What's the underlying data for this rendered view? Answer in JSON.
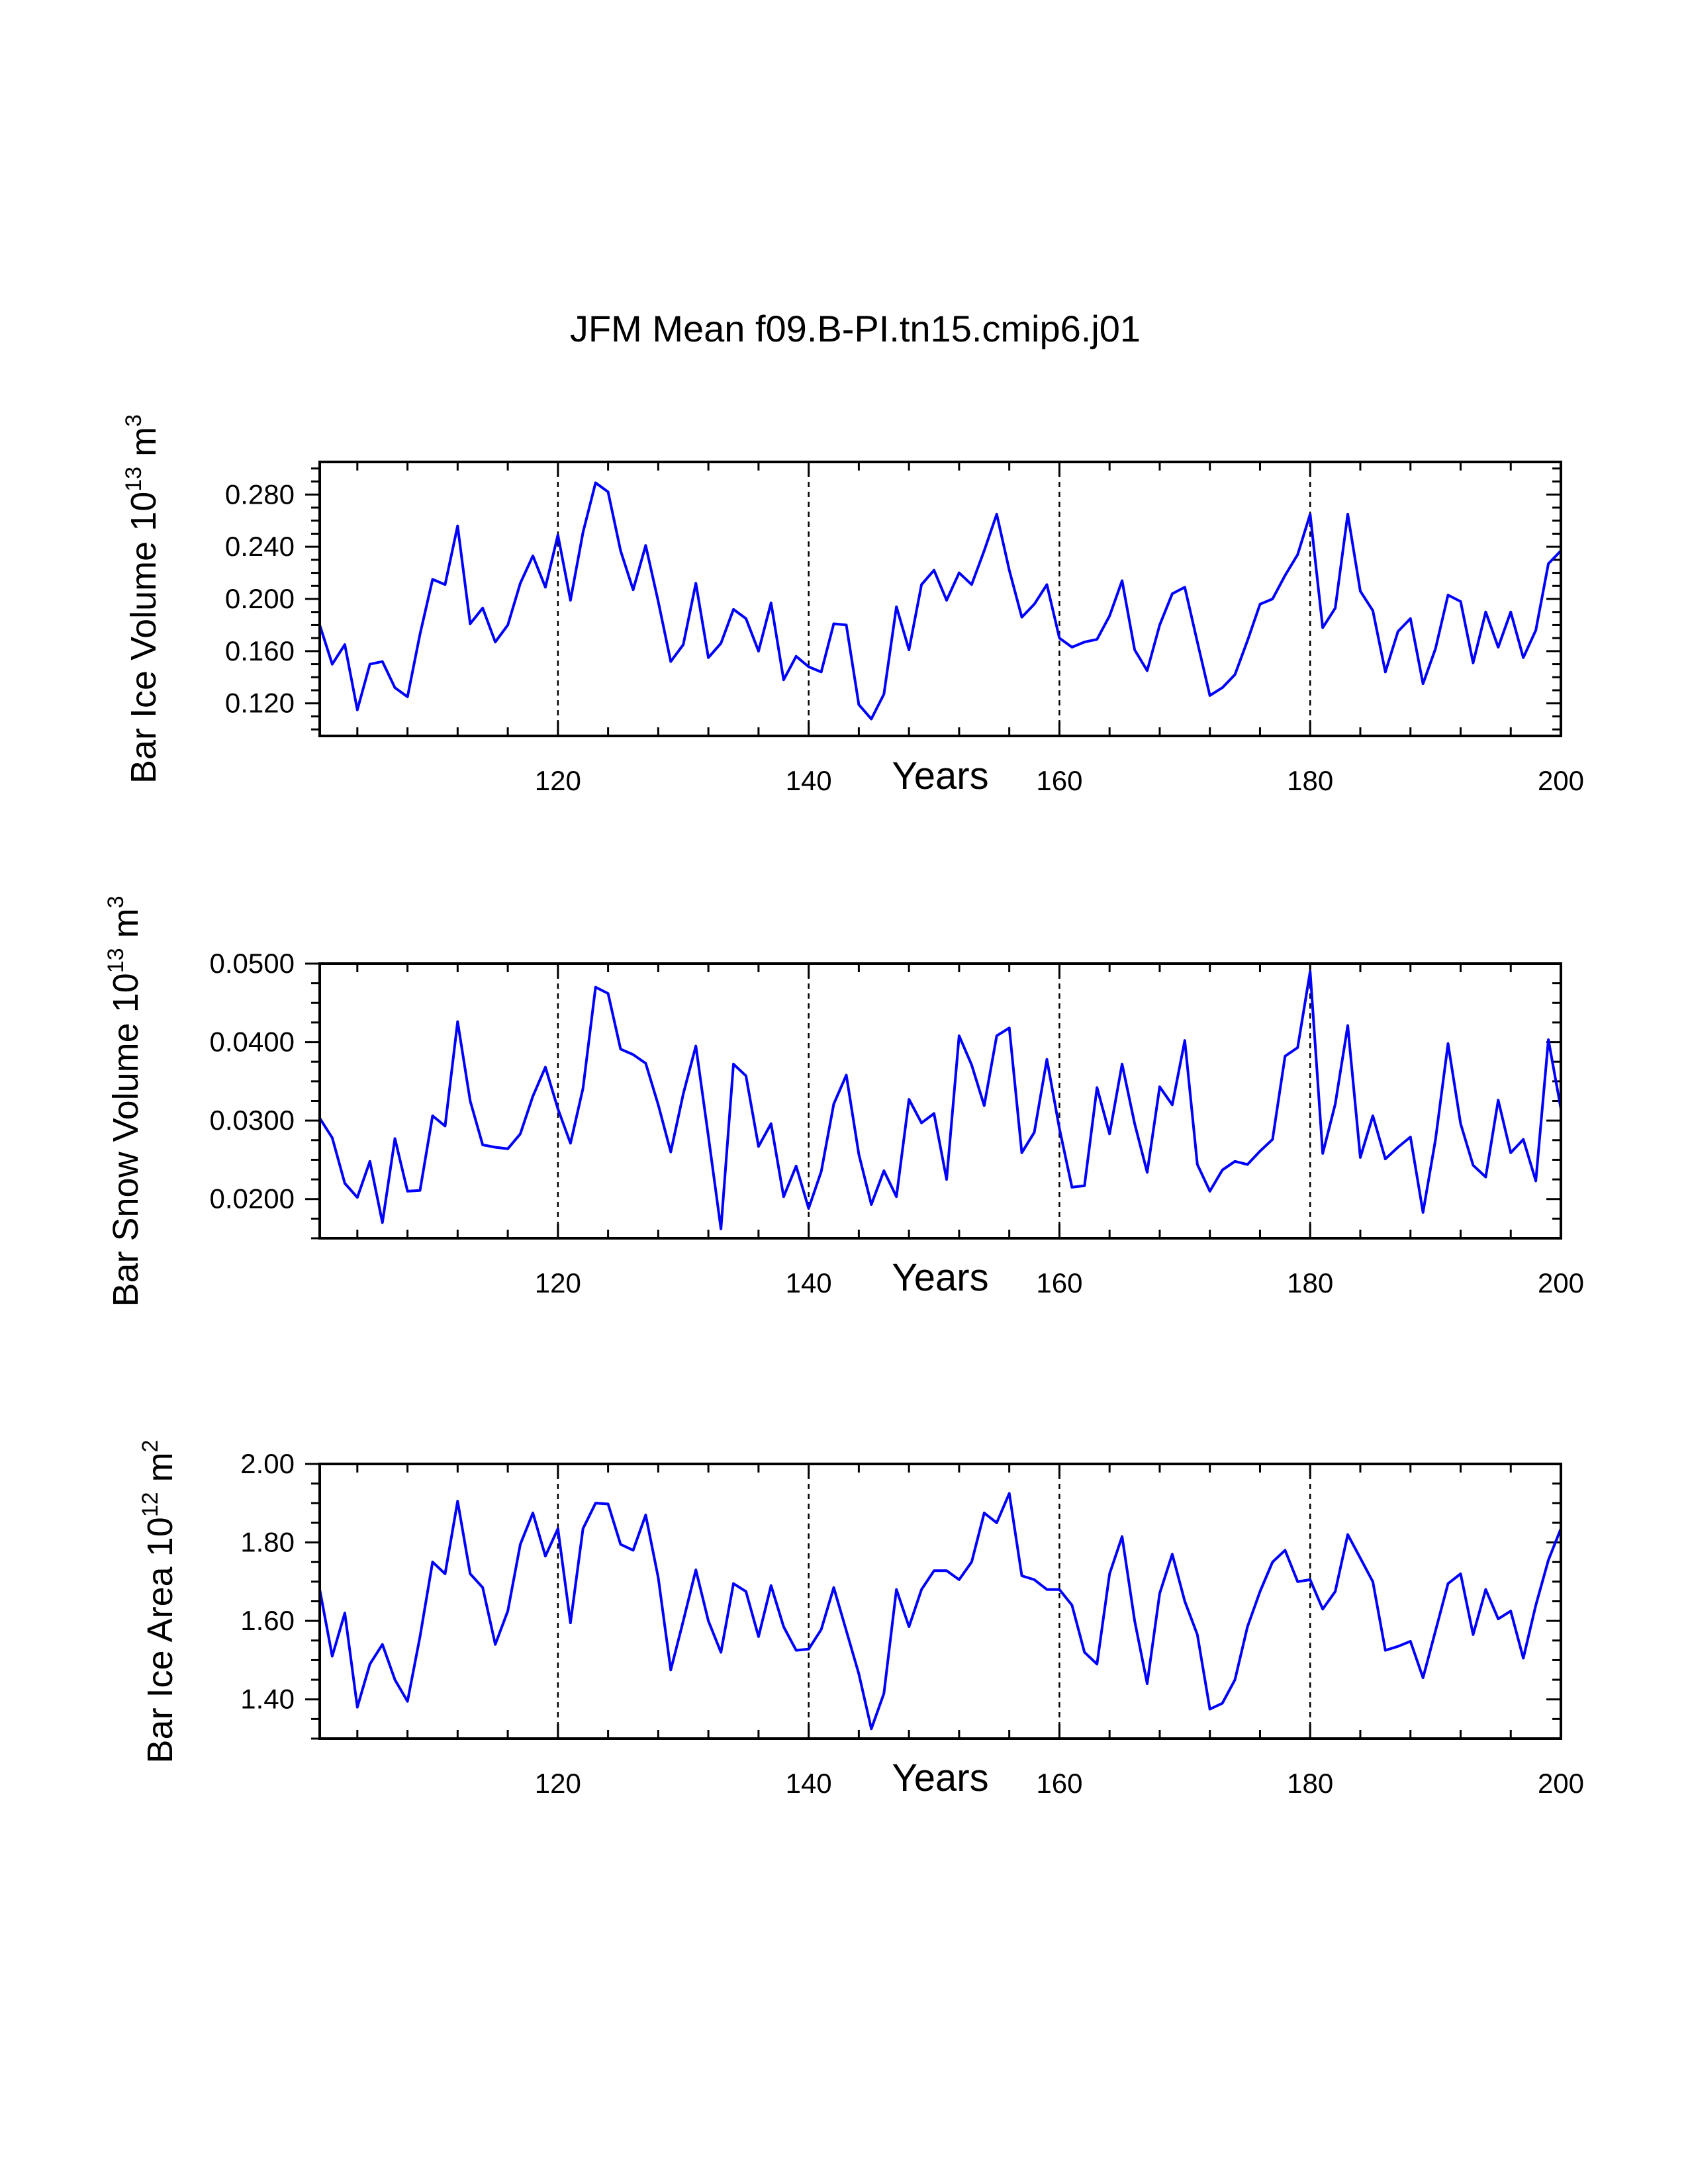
{
  "title": "JFM Mean f09.B-PI.tn15.cmip6.j01",
  "colors": {
    "line": "#0000ff",
    "axis": "#000000",
    "background": "#ffffff"
  },
  "chart_data": [
    {
      "type": "line",
      "ylabel_main": "Bar Ice Volume 10",
      "ylabel_exp": "13",
      "ylabel_unit": " m",
      "ylabel_unit_exp": "3",
      "xlabel": "Years",
      "xlim": [
        101,
        200
      ],
      "ylim": [
        0.095,
        0.305
      ],
      "xticks": [
        120,
        140,
        160,
        180,
        200
      ],
      "xtick_labels": [
        "120",
        "140",
        "160",
        "180",
        "200"
      ],
      "yticks": [
        0.12,
        0.16,
        0.2,
        0.24,
        0.28
      ],
      "ytick_labels": [
        "0.120",
        "0.160",
        "0.200",
        "0.240",
        "0.280"
      ],
      "grid_x": [
        120,
        140,
        160,
        180
      ],
      "series": [
        {
          "name": "Bar Ice Volume",
          "x_start": 101,
          "values": [
            0.18,
            0.15,
            0.165,
            0.115,
            0.15,
            0.152,
            0.132,
            0.125,
            0.173,
            0.215,
            0.211,
            0.256,
            0.181,
            0.193,
            0.167,
            0.18,
            0.212,
            0.233,
            0.209,
            0.249,
            0.199,
            0.251,
            0.289,
            0.282,
            0.237,
            0.207,
            0.241,
            0.198,
            0.152,
            0.165,
            0.212,
            0.155,
            0.166,
            0.192,
            0.185,
            0.16,
            0.197,
            0.138,
            0.156,
            0.148,
            0.144,
            0.181,
            0.18,
            0.119,
            0.108,
            0.127,
            0.194,
            0.161,
            0.211,
            0.222,
            0.199,
            0.22,
            0.211,
            0.237,
            0.265,
            0.222,
            0.186,
            0.196,
            0.211,
            0.17,
            0.163,
            0.167,
            0.169,
            0.187,
            0.214,
            0.161,
            0.145,
            0.18,
            0.204,
            0.209,
            0.167,
            0.126,
            0.132,
            0.142,
            0.168,
            0.196,
            0.2,
            0.218,
            0.234,
            0.265,
            0.178,
            0.193,
            0.265,
            0.206,
            0.191,
            0.144,
            0.175,
            0.185,
            0.135,
            0.162,
            0.203,
            0.198,
            0.151,
            0.19,
            0.163,
            0.19,
            0.155,
            0.176,
            0.227,
            0.237
          ]
        }
      ]
    },
    {
      "type": "line",
      "ylabel_main": "Bar Snow Volume 10",
      "ylabel_exp": "13",
      "ylabel_unit": " m",
      "ylabel_unit_exp": "3",
      "xlabel": "Years",
      "xlim": [
        101,
        200
      ],
      "ylim": [
        0.015,
        0.05
      ],
      "xticks": [
        120,
        140,
        160,
        180,
        200
      ],
      "xtick_labels": [
        "120",
        "140",
        "160",
        "180",
        "200"
      ],
      "yticks": [
        0.02,
        0.03,
        0.04,
        0.05
      ],
      "ytick_labels": [
        "0.0200",
        "0.0300",
        "0.0400",
        "0.0500"
      ],
      "grid_x": [
        120,
        140,
        160,
        180
      ],
      "series": [
        {
          "name": "Bar Snow Volume",
          "x_start": 101,
          "values": [
            0.0303,
            0.0278,
            0.022,
            0.0202,
            0.0248,
            0.017,
            0.0277,
            0.021,
            0.0211,
            0.0306,
            0.0293,
            0.0426,
            0.0325,
            0.0269,
            0.0266,
            0.0264,
            0.0283,
            0.0331,
            0.0368,
            0.0315,
            0.0271,
            0.0341,
            0.047,
            0.0462,
            0.0391,
            0.0384,
            0.0373,
            0.032,
            0.026,
            0.0334,
            0.0395,
            0.028,
            0.0162,
            0.0372,
            0.0357,
            0.0267,
            0.0296,
            0.0203,
            0.0242,
            0.0188,
            0.0235,
            0.0321,
            0.0358,
            0.0257,
            0.0193,
            0.0236,
            0.0203,
            0.0327,
            0.0297,
            0.0309,
            0.0225,
            0.0408,
            0.0371,
            0.0319,
            0.0408,
            0.0418,
            0.0259,
            0.0285,
            0.0378,
            0.029,
            0.0215,
            0.0217,
            0.0342,
            0.0283,
            0.0372,
            0.0296,
            0.0234,
            0.0343,
            0.032,
            0.0402,
            0.0244,
            0.021,
            0.0237,
            0.0248,
            0.0244,
            0.0261,
            0.0276,
            0.0382,
            0.0393,
            0.049,
            0.0258,
            0.0321,
            0.0421,
            0.0253,
            0.0306,
            0.0251,
            0.0266,
            0.0279,
            0.0183,
            0.0276,
            0.0398,
            0.0296,
            0.0243,
            0.0228,
            0.0326,
            0.0259,
            0.0276,
            0.0223,
            0.0403,
            0.0315
          ]
        }
      ]
    },
    {
      "type": "line",
      "ylabel_main": "Bar Ice Area 10",
      "ylabel_exp": "12",
      "ylabel_unit": " m",
      "ylabel_unit_exp": "2",
      "xlabel": "Years",
      "xlim": [
        101,
        200
      ],
      "ylim": [
        1.3,
        2.0
      ],
      "xticks": [
        120,
        140,
        160,
        180,
        200
      ],
      "xtick_labels": [
        "120",
        "140",
        "160",
        "180",
        "200"
      ],
      "yticks": [
        1.4,
        1.6,
        1.8,
        2.0
      ],
      "ytick_labels": [
        "1.40",
        "1.60",
        "1.80",
        "2.00"
      ],
      "grid_x": [
        120,
        140,
        160,
        180
      ],
      "series": [
        {
          "name": "Bar Ice Area",
          "x_start": 101,
          "values": [
            1.68,
            1.51,
            1.62,
            1.38,
            1.49,
            1.54,
            1.45,
            1.395,
            1.56,
            1.75,
            1.72,
            1.905,
            1.72,
            1.685,
            1.54,
            1.625,
            1.795,
            1.875,
            1.765,
            1.835,
            1.595,
            1.835,
            1.9,
            1.898,
            1.795,
            1.78,
            1.87,
            1.71,
            1.475,
            1.6,
            1.73,
            1.6,
            1.52,
            1.695,
            1.675,
            1.56,
            1.69,
            1.585,
            1.525,
            1.528,
            1.578,
            1.685,
            1.575,
            1.465,
            1.325,
            1.415,
            1.68,
            1.585,
            1.68,
            1.728,
            1.728,
            1.705,
            1.75,
            1.875,
            1.85,
            1.925,
            1.715,
            1.705,
            1.68,
            1.68,
            1.64,
            1.52,
            1.49,
            1.72,
            1.815,
            1.6,
            1.44,
            1.67,
            1.77,
            1.65,
            1.565,
            1.375,
            1.39,
            1.45,
            1.585,
            1.675,
            1.75,
            1.78,
            1.7,
            1.705,
            1.63,
            1.675,
            1.82,
            1.76,
            1.7,
            1.525,
            1.535,
            1.548,
            1.455,
            1.575,
            1.695,
            1.72,
            1.565,
            1.68,
            1.605,
            1.625,
            1.505,
            1.64,
            1.755,
            1.835
          ]
        }
      ]
    }
  ]
}
